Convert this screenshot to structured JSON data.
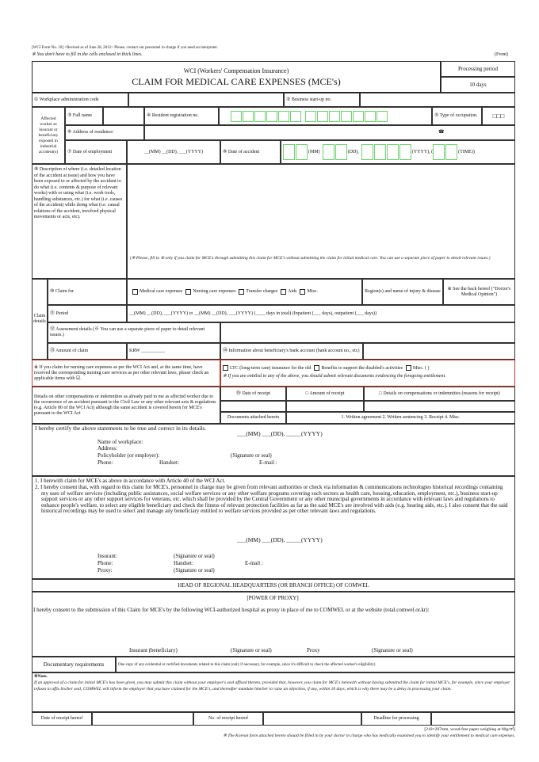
{
  "header": {
    "form_no": "[WCI Form No. 10] <Revised as of June 28, 2012> Please, contact our personnel in charge if you need an interpreter.",
    "note": "※ You don't have to fill in the cells enclosed in thick lines.",
    "side": "(Front)"
  },
  "title": {
    "line1": "WCI (Workers' Compensation Insurance)",
    "line2": "CLAIM FOR MEDICAL CARE EXPENSES (MCE's)",
    "period_label": "Processing period",
    "period_value": "10 days"
  },
  "row1": {
    "code_label": "① Workplace administration code",
    "bizno_label": "② Business start-up no."
  },
  "worker": {
    "group_label": "Affected worker as insurant or beneficiary exposed in industrial accident(s)",
    "name_label": "③ Full name",
    "resident_label": "④ Resident registration no.",
    "occupation_label": "⑤ Type of occupation.",
    "occupation_boxes": "□□□",
    "address_label": "⑥ Address of residence:",
    "phone_icon": "☎",
    "employ_label": "⑦ Date of employment",
    "employ_value": "__(MM) __(DD), ___(YYYY)",
    "accident_label": "⑧ Date of accident",
    "mm": "(MM)",
    "dd": "(DD),",
    "yyyy": "(YYYY), (",
    "time": "(TIME))"
  },
  "description": {
    "label": "⑨ Description of where (i.e. detailed location of the accident at issue) and how you have been exposed to or affected by the accident to do what (i.e. contents & purpose of relevant works) with or using what (i.e. work tools, handling substances, etc.) for what (i.e. causes of the accident) while doing what (i.e. causal relations of the accident, involved physical movements or acts, etc).",
    "note": "(※ Please, fill in ⑨ only if you claim for MCE's through submitting this claim for MCE's without submitting the claim for initial medical care. You can use a separate piece of paper to detail relevant issues.)"
  },
  "claims": {
    "group_label": "Claim details",
    "claim_for_label": "⑩ Claim for",
    "options": [
      "Medical care expenses",
      "Nursing care expenses",
      "Transfer charges",
      "Aids",
      "Misc."
    ],
    "region_label": "Region(s) and name of injury & disease",
    "see_back": "※ See the back hereof (\"Doctor's Medical Opinion\")",
    "period_label": "⑪ Period",
    "period_value": "__(MM) __(DD), ___(YYYY) to __(MM) __(DD), ___(YYYY) (____ days in total) (Inpatient (___ days), outpatient (___ days))",
    "assessment_label": "⑫ Assessment details (※ You can use a separate piece of paper to detail relevant issues.)",
    "amount_label": "⑬ Amount of claim",
    "amount_value": "KRW __________",
    "bank_label": "⑭ Information about beneficiary's bank account (bank account no., etc)"
  },
  "nursing": {
    "left": "※ If you claim for nursing care expenses as per the WCI Act and, at the same time, have received the corresponding nursing care services as per other relevant laws, please check an applicable items with ☑.",
    "options": [
      "LTC (long-term care) insurance for the old",
      "Benefits to support the disabled's activities",
      "Misc. (          )"
    ],
    "note": "※ If you are entitled to any of the above, you should submit relevant documents evidencing the foregoing entitlement."
  },
  "other_comp": {
    "left": "Details on other compensations or indemnities as already paid to me as affected worker due to the occurrence of an accident pursuant to the Civil Law or any other relevant acts & regulations (e.g. Article 80 of the WCI Act) although the same accident is covered herein for MCE's pursuant to the WCI Act",
    "date_label": "⑮ Date of receipt",
    "amount_label": "□ Amount of receipt",
    "details_label": "□ Details on compensations or indemnities (reasons for receipt)",
    "docs_label": "Documents attached hereto",
    "docs_value": "1. Written agreement   2. Written sentencing   3. Receipt   4. Misc."
  },
  "certify": {
    "text": "I hereby certify the above statements to be true and correct in its details.",
    "date": "___(MM) ___(DD), _____(YYYY)",
    "workplace": "Name of workplace:",
    "address": "Address:",
    "policyholder": "Policyholder (or employer):",
    "signature": "(Signature or seal)",
    "phone": "Phone:",
    "handset": "Handset:",
    "email": "E-mail :"
  },
  "consent": {
    "item1": "1. I herewith claim for MCE's as above in accordance with Article 40 of the WCI Act.",
    "item2": "2. I hereby consent that, with regard to this claim for MCE's, personnel in charge may be given from relevant authorities or check via information & communications technologies historical recordings containing my uses of welfare services (including public assistances, social welfare services or any other welfare programs covering such sectors as health care, housing, education, employment, etc.), business start-up support services or any other support services for veterans, etc. which shall be provided by the Central Government or any other municipal governments in accordance with relevant laws and regulations to enhance people's welfare, to select any eligible beneficiary and check the fitness of relevant protection facilities as far as the said MCE's are involved with aids (e.g. hearing aids, etc.). I also consent that the said historical recordings may be used to select and manage any beneficiary entitled to welfare services provided as per other relevant laws and regulations.",
    "date": "___(MM) ___(DD), _____(YYYY)",
    "insurant": "Insurant:",
    "sig1": "(Signature or seal)",
    "phone": "Phone:",
    "handset": "Handset:",
    "email": "E-mail :",
    "proxy": "Proxy:",
    "sig2": "(Signature or seal)"
  },
  "head": "HEAD OF REGIONAL HEADQUARTERS (OR BRANCH OFFICE) OF COMWEL",
  "proxy": {
    "title": "[POWER OF PROXY]",
    "text": "I hereby consent to the submission of this Claim for MCE's by the following WCI-authorized hospital as proxy in place of me to COMWEL or at the website (total.comwel.or.kr):",
    "insurant": "Insurant (beneficiary)",
    "sig1": "(Signature or seal)",
    "proxy": "Proxy",
    "sig2": "(Signature or seal)"
  },
  "docs": {
    "label": "Documentary requirements",
    "value": "One copy of any evidential or certified documents related to this claim (only if necessary, for example, since it's difficult to check the affected worker's eligibility)"
  },
  "note": {
    "title": "※Note.",
    "text": "If an approval of a claim for initial MCE's has been given, you may submit this claim without your employer's seal affixed thereto, provided that, however, you claim for MCE's herewith without having submitted the claim for initial MCE's, for example, since your employer refuses to affix his/her seal, COMWEL will inform the employer that you have claimed for the MCE's, and thereafter mandate him/her to raise an objection, if any, within 10 days, which is why there may be a delay in processing your claim."
  },
  "receipt": {
    "date_label": "Date of receipt hereof",
    "no_label": "No. of receipt hereof",
    "deadline_label": "Deadline for processing"
  },
  "footer": {
    "paper": "[210×297mm, wood-free paper weighing at 80g/㎡]",
    "note": "※ The Korean form attached hereto should be filled in by your doctor in charge who has medically examined you to identify your entitlement to medical care expenses."
  },
  "colors": {
    "green_box": "#6fd36f",
    "red_border": "#c0392b"
  }
}
